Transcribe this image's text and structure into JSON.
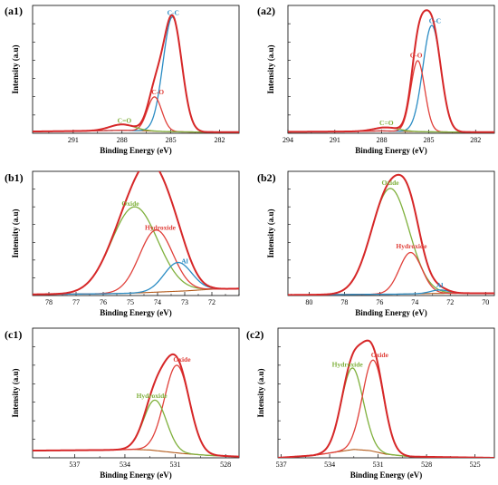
{
  "colors": {
    "envelope": "#d62728",
    "blue": "#2b8cc4",
    "red_component": "#e0403a",
    "green": "#7fb03c",
    "background": "#b35a1a"
  },
  "chart_data": [
    {
      "id": "a1",
      "type": "line",
      "panel_label": "(a1)",
      "xlabel": "Binding Energy (eV)",
      "ylabel": "Intensity (a.u)",
      "xlim": [
        293.5,
        280.8
      ],
      "ylim": [
        0,
        1.08
      ],
      "reversed_x": true,
      "xticks": [
        291,
        288,
        285,
        282
      ],
      "tick_labels": [
        "291",
        "288",
        "285",
        "282"
      ],
      "baseline": {
        "name": "background",
        "color": "#b35a1a",
        "x": [
          293.5,
          290,
          288,
          286.5,
          285.5,
          284.5,
          283,
          280.8
        ],
        "y": [
          0.015,
          0.02,
          0.025,
          0.02,
          0.015,
          0.012,
          0.01,
          0.01
        ]
      },
      "peaks": [
        {
          "name": "C-C",
          "center": 284.9,
          "height": 0.97,
          "fwhm": 1.35,
          "color": "#2b8cc4"
        },
        {
          "name": "C-O",
          "center": 286.0,
          "height": 0.29,
          "fwhm": 1.05,
          "color": "#e0403a"
        },
        {
          "name": "C=O",
          "center": 288.0,
          "height": 0.05,
          "fwhm": 1.8,
          "color": "#7fb03c"
        }
      ],
      "envelope_color": "#d62728",
      "annotations": [
        {
          "text": "C-C",
          "x": 284.85,
          "y": 1.0,
          "color": "#2b8cc4"
        },
        {
          "text": "C-O",
          "x": 285.8,
          "y": 0.33,
          "color": "#e0403a"
        },
        {
          "text": "C=O",
          "x": 287.85,
          "y": 0.09,
          "color": "#7fb03c"
        }
      ]
    },
    {
      "id": "a2",
      "type": "line",
      "panel_label": "(a2)",
      "xlabel": "Binding Energy (eV)",
      "ylabel": "Intensity (a.u)",
      "xlim": [
        294.0,
        280.8
      ],
      "ylim": [
        0,
        1.08
      ],
      "reversed_x": true,
      "xticks": [
        294,
        291,
        288,
        285,
        282
      ],
      "tick_labels": [
        "294",
        "291",
        "288",
        "285",
        "282"
      ],
      "baseline": {
        "name": "background",
        "color": "#b35a1a",
        "x": [
          294,
          290,
          288,
          286.5,
          285,
          283,
          280.8
        ],
        "y": [
          0.012,
          0.015,
          0.02,
          0.016,
          0.012,
          0.01,
          0.01
        ]
      },
      "peaks": [
        {
          "name": "C-C",
          "center": 284.8,
          "height": 0.9,
          "fwhm": 1.35,
          "color": "#2b8cc4"
        },
        {
          "name": "C-O",
          "center": 285.7,
          "height": 0.6,
          "fwhm": 1.05,
          "color": "#e0403a"
        },
        {
          "name": "C=O",
          "center": 287.7,
          "height": 0.03,
          "fwhm": 1.8,
          "color": "#7fb03c"
        }
      ],
      "envelope_color": "#d62728",
      "annotations": [
        {
          "text": "C-C",
          "x": 284.6,
          "y": 0.93,
          "color": "#2b8cc4"
        },
        {
          "text": "C-O",
          "x": 285.8,
          "y": 0.64,
          "color": "#e0403a"
        },
        {
          "text": "C=O",
          "x": 287.7,
          "y": 0.07,
          "color": "#7fb03c"
        }
      ]
    },
    {
      "id": "b1",
      "type": "line",
      "panel_label": "(b1)",
      "xlabel": "Binding Energy (eV)",
      "ylabel": "Intensity (a.u)",
      "xlim": [
        78.6,
        71.0
      ],
      "ylim": [
        0,
        1.08
      ],
      "reversed_x": true,
      "xticks": [
        78,
        77,
        76,
        75,
        74,
        73,
        72
      ],
      "tick_labels": [
        "78",
        "77",
        "76",
        "75",
        "74",
        "73",
        "72"
      ],
      "baseline": {
        "name": "background",
        "color": "#b35a1a",
        "x": [
          78.6,
          76,
          75,
          74,
          73,
          72,
          71
        ],
        "y": [
          0.01,
          0.015,
          0.02,
          0.03,
          0.04,
          0.055,
          0.06
        ]
      },
      "peaks": [
        {
          "name": "Oxide",
          "center": 74.85,
          "height": 0.75,
          "fwhm": 2.0,
          "color": "#7fb03c"
        },
        {
          "name": "Hydroxide",
          "center": 74.05,
          "height": 0.54,
          "fwhm": 1.45,
          "color": "#e0403a"
        },
        {
          "name": "Al",
          "center": 73.25,
          "height": 0.25,
          "fwhm": 1.2,
          "color": "#2b8cc4"
        }
      ],
      "envelope_color": "#d62728",
      "annotations": [
        {
          "text": "Oxide",
          "x": 75.0,
          "y": 0.78,
          "color": "#7fb03c"
        },
        {
          "text": "Hydroxide",
          "x": 73.9,
          "y": 0.57,
          "color": "#e0403a"
        },
        {
          "text": "Al",
          "x": 73.0,
          "y": 0.28,
          "color": "#2b8cc4"
        }
      ]
    },
    {
      "id": "b2",
      "type": "line",
      "panel_label": "(b2)",
      "xlabel": "Binding Energy (eV)",
      "ylabel": "Intensity (a.u)",
      "xlim": [
        81.2,
        69.5
      ],
      "ylim": [
        0,
        1.08
      ],
      "reversed_x": true,
      "xticks": [
        80,
        78,
        76,
        74,
        72,
        70
      ],
      "tick_labels": [
        "80",
        "78",
        "76",
        "74",
        "72",
        "70"
      ],
      "baseline": {
        "name": "background",
        "color": "#b35a1a",
        "x": [
          81.2,
          77,
          75,
          74,
          73,
          71,
          69.5
        ],
        "y": [
          0.005,
          0.01,
          0.012,
          0.015,
          0.018,
          0.02,
          0.02
        ]
      },
      "peaks": [
        {
          "name": "Oxide",
          "center": 75.4,
          "height": 0.92,
          "fwhm": 2.5,
          "color": "#7fb03c"
        },
        {
          "name": "Hydroxide",
          "center": 74.25,
          "height": 0.36,
          "fwhm": 1.5,
          "color": "#e0403a"
        },
        {
          "name": "Al",
          "center": 72.6,
          "height": 0.03,
          "fwhm": 1.2,
          "color": "#2b8cc4"
        }
      ],
      "envelope_color": "#d62728",
      "annotations": [
        {
          "text": "Oxide",
          "x": 75.4,
          "y": 0.96,
          "color": "#7fb03c"
        },
        {
          "text": "Hydroxide",
          "x": 74.2,
          "y": 0.41,
          "color": "#e0403a"
        },
        {
          "text": "Al",
          "x": 72.6,
          "y": 0.07,
          "color": "#2b8cc4"
        }
      ]
    },
    {
      "id": "c1",
      "type": "line",
      "panel_label": "(c1)",
      "xlabel": "Binding Energy (eV)",
      "ylabel": "Intensity (a.u)",
      "xlim": [
        539.5,
        527.2
      ],
      "ylim": [
        0,
        1.08
      ],
      "reversed_x": true,
      "xticks": [
        537,
        534,
        531,
        528
      ],
      "tick_labels": [
        "537",
        "534",
        "531",
        "528"
      ],
      "baseline": {
        "name": "background",
        "color": "#b35a1a",
        "x": [
          539.5,
          535,
          533.5,
          532.5,
          531.5,
          530.5,
          529,
          527.2
        ],
        "y": [
          0.06,
          0.065,
          0.07,
          0.065,
          0.05,
          0.035,
          0.02,
          0.01
        ]
      },
      "peaks": [
        {
          "name": "Oxide",
          "center": 530.9,
          "height": 0.73,
          "fwhm": 1.75,
          "color": "#e0403a"
        },
        {
          "name": "Hydroxide",
          "center": 532.2,
          "height": 0.42,
          "fwhm": 1.6,
          "color": "#7fb03c"
        }
      ],
      "envelope_color": "#d62728",
      "annotations": [
        {
          "text": "Oxide",
          "x": 530.6,
          "y": 0.8,
          "color": "#e0403a"
        },
        {
          "text": "Hydroxide",
          "x": 532.4,
          "y": 0.5,
          "color": "#7fb03c"
        }
      ]
    },
    {
      "id": "c2",
      "type": "line",
      "panel_label": "(c2)",
      "xlabel": "Binding Energy (eV)",
      "ylabel": "Intensity (a.u)",
      "xlim": [
        537.2,
        523.8
      ],
      "ylim": [
        0,
        1.08
      ],
      "reversed_x": true,
      "xticks": [
        537,
        534,
        531,
        528,
        525
      ],
      "tick_labels": [
        "537",
        "534",
        "531",
        "528",
        "525"
      ],
      "baseline": {
        "name": "background",
        "color": "#b35a1a",
        "x": [
          537.2,
          535,
          533.5,
          532.5,
          531.5,
          530.5,
          529,
          523.8
        ],
        "y": [
          0.0,
          0.02,
          0.05,
          0.07,
          0.06,
          0.03,
          0.01,
          0.0
        ]
      },
      "peaks": [
        {
          "name": "Hydroxide",
          "center": 532.6,
          "height": 0.68,
          "fwhm": 1.6,
          "color": "#7fb03c"
        },
        {
          "name": "Oxide",
          "center": 531.3,
          "height": 0.76,
          "fwhm": 1.55,
          "color": "#e0403a"
        }
      ],
      "envelope_color": "#d62728",
      "annotations": [
        {
          "text": "Hydroxide",
          "x": 532.9,
          "y": 0.76,
          "color": "#7fb03c"
        },
        {
          "text": "Oxide",
          "x": 530.9,
          "y": 0.84,
          "color": "#e0403a"
        }
      ]
    }
  ]
}
